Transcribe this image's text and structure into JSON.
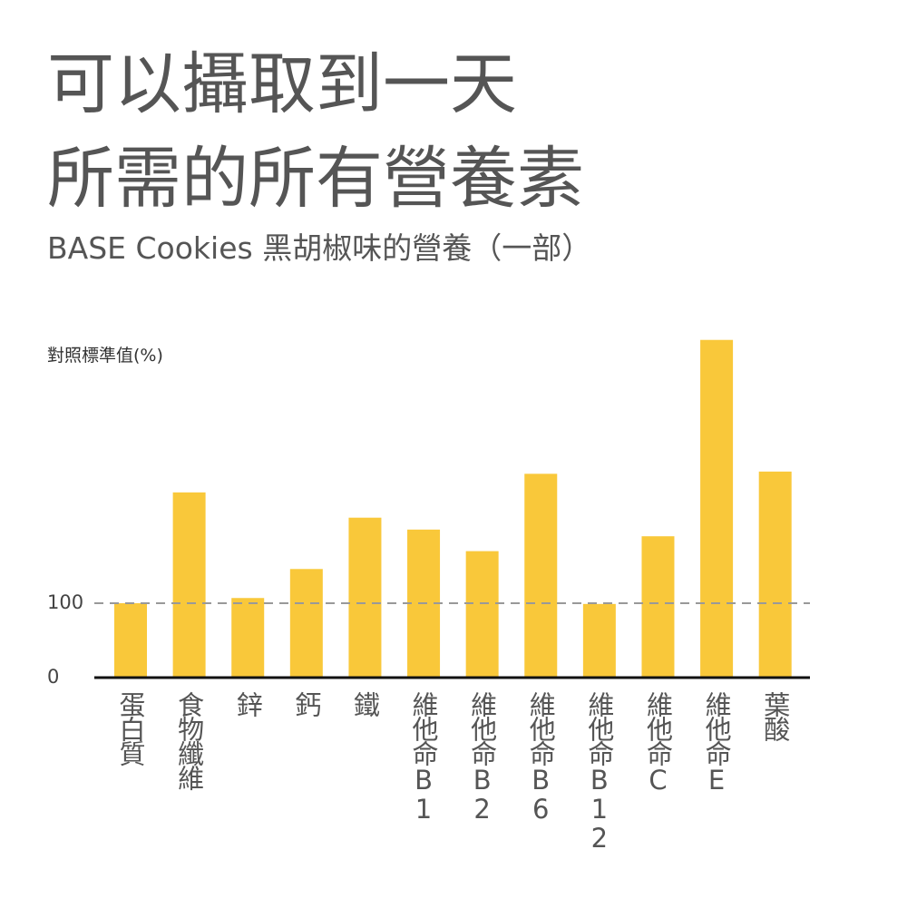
{
  "chart_data": {
    "type": "bar",
    "title": [
      "可以攝取到一天",
      "所需的所有營養素"
    ],
    "subtitle": "BASE Cookies 黑胡椒味的營養（一部）",
    "y_label": "對照標準值(%)",
    "categories": [
      "蛋白質",
      "食物纖維",
      "鋅",
      "鈣",
      "鐵",
      "維他命B1",
      "維他命B2",
      "維他命B6",
      "維他命B12",
      "維他命C",
      "維他命E",
      "葉酸"
    ],
    "values": [
      100,
      249,
      107,
      146,
      215,
      199,
      170,
      274,
      99,
      190,
      454,
      277
    ],
    "color": "#f9c83a",
    "ylim": [
      0,
      460
    ],
    "yticks": [
      0,
      100
    ],
    "grid": true
  }
}
